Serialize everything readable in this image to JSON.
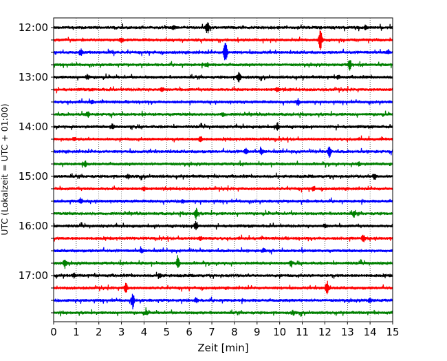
{
  "chart_data": {
    "type": "line",
    "title": "",
    "xlabel": "Zeit  [min]",
    "ylabel": "UTC (Lokalzeit = UTC + 01:00)",
    "xlim": [
      0,
      15
    ],
    "x_ticks": [
      0,
      1,
      2,
      3,
      4,
      5,
      6,
      7,
      8,
      9,
      10,
      11,
      12,
      13,
      14,
      15
    ],
    "x_tick_labels": [
      "0",
      "1",
      "2",
      "3",
      "4",
      "5",
      "6",
      "7",
      "8",
      "9",
      "10",
      "11",
      "12",
      "13",
      "14",
      "15"
    ],
    "y_tick_labels": [
      "12:00",
      "13:00",
      "14:00",
      "15:00",
      "16:00",
      "17:00"
    ],
    "trace_colors": [
      "#000000",
      "#ff0000",
      "#0000ff",
      "#008000"
    ],
    "grid": "vertical-dotted",
    "series": [
      {
        "start": "12:00",
        "events": [
          [
            6.8,
            0.9
          ],
          [
            5.3,
            0.3
          ],
          [
            13.8,
            0.3
          ]
        ]
      },
      {
        "start": "12:15",
        "events": [
          [
            11.8,
            1.5
          ],
          [
            3.0,
            0.45
          ]
        ]
      },
      {
        "start": "12:30",
        "events": [
          [
            7.6,
            2.0
          ],
          [
            1.2,
            0.45
          ],
          [
            14.8,
            0.3
          ]
        ]
      },
      {
        "start": "12:45",
        "events": [
          [
            13.1,
            0.8
          ],
          [
            6.8,
            0.3
          ]
        ]
      },
      {
        "start": "13:00",
        "events": [
          [
            8.2,
            0.9
          ],
          [
            1.5,
            0.35
          ],
          [
            12.6,
            0.3
          ]
        ]
      },
      {
        "start": "13:15",
        "events": [
          [
            4.8,
            0.35
          ],
          [
            9.9,
            0.3
          ]
        ]
      },
      {
        "start": "13:30",
        "events": [
          [
            10.8,
            0.55
          ],
          [
            1.7,
            0.3
          ]
        ]
      },
      {
        "start": "13:45",
        "events": [
          [
            1.5,
            0.45
          ],
          [
            7.5,
            0.3
          ]
        ]
      },
      {
        "start": "14:00",
        "events": [
          [
            9.9,
            0.6
          ],
          [
            2.6,
            0.45
          ]
        ]
      },
      {
        "start": "14:15",
        "events": [
          [
            6.5,
            0.5
          ],
          [
            0.9,
            0.3
          ]
        ]
      },
      {
        "start": "14:30",
        "events": [
          [
            12.2,
            0.8
          ],
          [
            9.2,
            0.45
          ],
          [
            8.5,
            0.4
          ]
        ]
      },
      {
        "start": "14:45",
        "events": [
          [
            1.4,
            0.45
          ],
          [
            13.5,
            0.3
          ]
        ]
      },
      {
        "start": "15:00",
        "events": [
          [
            14.2,
            0.45
          ],
          [
            3.3,
            0.3
          ]
        ]
      },
      {
        "start": "15:15",
        "events": [
          [
            11.5,
            0.4
          ],
          [
            4.0,
            0.3
          ]
        ]
      },
      {
        "start": "15:30",
        "events": [
          [
            1.2,
            0.45
          ],
          [
            5.7,
            0.3
          ]
        ]
      },
      {
        "start": "15:45",
        "events": [
          [
            6.3,
            0.8
          ],
          [
            13.3,
            0.5
          ]
        ]
      },
      {
        "start": "16:00",
        "events": [
          [
            6.3,
            0.75
          ],
          [
            12.0,
            0.3
          ]
        ]
      },
      {
        "start": "16:15",
        "events": [
          [
            13.7,
            0.6
          ],
          [
            6.5,
            0.3
          ]
        ]
      },
      {
        "start": "16:30",
        "events": [
          [
            3.9,
            0.3
          ],
          [
            9.3,
            0.3
          ]
        ]
      },
      {
        "start": "16:45",
        "events": [
          [
            5.5,
            0.9
          ],
          [
            0.5,
            0.6
          ],
          [
            10.5,
            0.3
          ]
        ]
      },
      {
        "start": "17:00",
        "events": [
          [
            4.7,
            0.35
          ],
          [
            0.9,
            0.3
          ]
        ]
      },
      {
        "start": "17:15",
        "events": [
          [
            12.1,
            1.1
          ],
          [
            3.2,
            0.75
          ]
        ]
      },
      {
        "start": "17:30",
        "events": [
          [
            3.5,
            1.3
          ],
          [
            14.0,
            0.35
          ],
          [
            6.3,
            0.3
          ]
        ]
      },
      {
        "start": "17:45",
        "events": [
          [
            4.1,
            0.3
          ],
          [
            10.6,
            0.3
          ]
        ]
      }
    ]
  }
}
